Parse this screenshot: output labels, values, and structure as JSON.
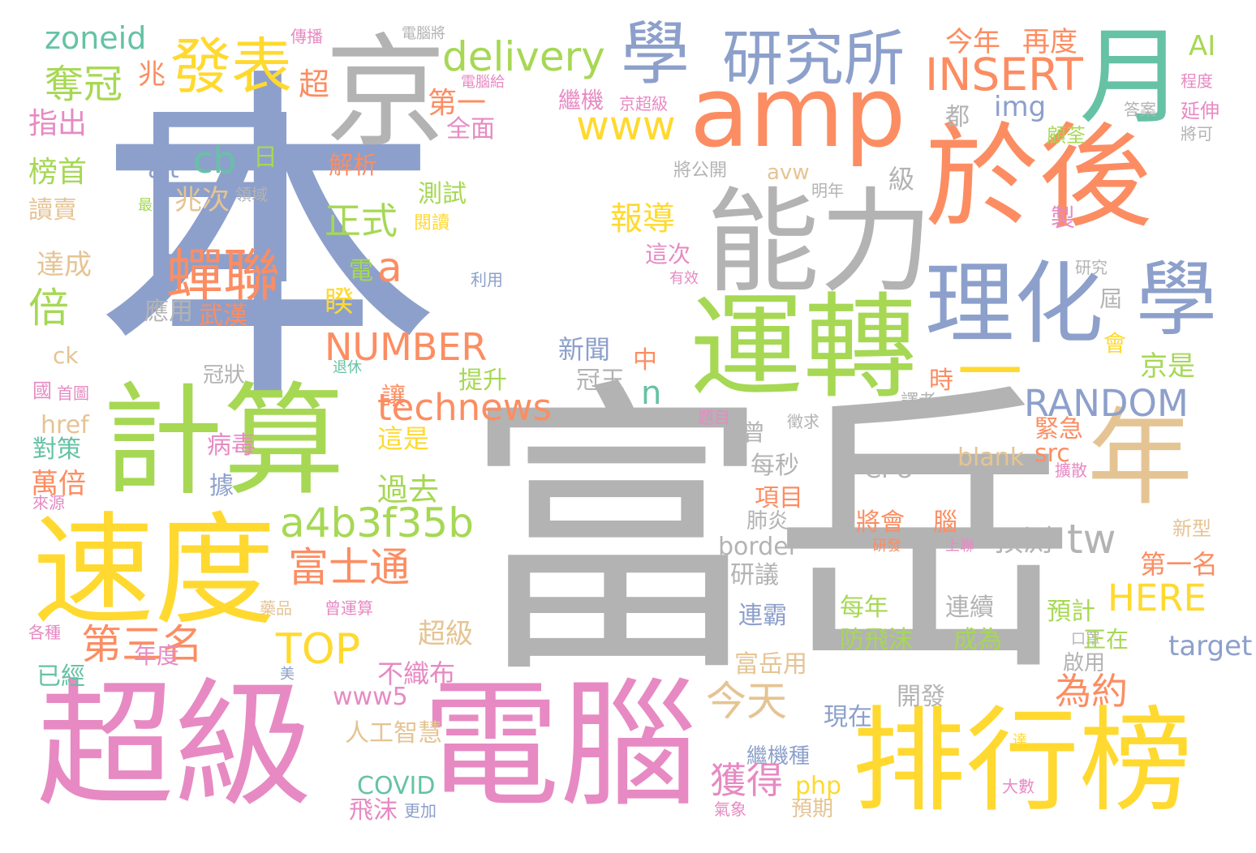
{
  "palette": {
    "blue": "#8da0cb",
    "gray": "#b3b3b3",
    "orange": "#fc8d62",
    "green": "#a6d854",
    "pink": "#e78ac3",
    "yellow": "#ffd92f",
    "tan": "#e5c494",
    "teal": "#66c2a5"
  },
  "words": [
    {
      "text": "本",
      "color": "#8da0cb"
    },
    {
      "text": "日",
      "color": "#8da0cb"
    },
    {
      "text": "富岳",
      "color": "#b3b3b3"
    },
    {
      "text": "電腦",
      "color": "#e78ac3"
    },
    {
      "text": "超級",
      "color": "#e78ac3"
    },
    {
      "text": "排行榜",
      "color": "#ffd92f"
    },
    {
      "text": "速度",
      "color": "#ffd92f"
    },
    {
      "text": "計算",
      "color": "#a6d854"
    },
    {
      "text": "運轉",
      "color": "#a6d854"
    },
    {
      "text": "能力",
      "color": "#b3b3b3"
    },
    {
      "text": "於後",
      "color": "#fc8d62"
    },
    {
      "text": "amp",
      "color": "#fc8d62"
    },
    {
      "text": "京",
      "color": "#b3b3b3"
    },
    {
      "text": "月",
      "color": "#66c2a5"
    },
    {
      "text": "年",
      "color": "#e5c494"
    },
    {
      "text": "一",
      "color": "#ffd92f"
    },
    {
      "text": "理化",
      "color": "#8da0cb"
    },
    {
      "text": "學",
      "color": "#8da0cb"
    },
    {
      "text": "學",
      "color": "#8da0cb"
    },
    {
      "text": "研究所",
      "color": "#8da0cb"
    },
    {
      "text": "發表",
      "color": "#ffd92f"
    },
    {
      "text": "delivery",
      "color": "#a6d854"
    },
    {
      "text": "INSERT",
      "color": "#fc8d62"
    },
    {
      "text": "zoneid",
      "color": "#66c2a5"
    },
    {
      "text": "傳播",
      "color": "#e78ac3"
    },
    {
      "text": "電腦將",
      "color": "#b3b3b3"
    },
    {
      "text": "今年",
      "color": "#fc8d62"
    },
    {
      "text": "再度",
      "color": "#fc8d62"
    },
    {
      "text": "AI",
      "color": "#a6d854"
    },
    {
      "text": "程度",
      "color": "#e78ac3"
    },
    {
      "text": "奪冠",
      "color": "#a6d854"
    },
    {
      "text": "兆",
      "color": "#fc8d62"
    },
    {
      "text": "超",
      "color": "#fc8d62"
    },
    {
      "text": "電腦給",
      "color": "#e78ac3"
    },
    {
      "text": "繼機",
      "color": "#e78ac3"
    },
    {
      "text": "京超級",
      "color": "#e78ac3"
    },
    {
      "text": "第一",
      "color": "#fc8d62"
    },
    {
      "text": "全面",
      "color": "#e78ac3"
    },
    {
      "text": "www",
      "color": "#ffd92f"
    },
    {
      "text": "img",
      "color": "#8da0cb"
    },
    {
      "text": "都",
      "color": "#b3b3b3"
    },
    {
      "text": "答案",
      "color": "#b3b3b3"
    },
    {
      "text": "延伸",
      "color": "#e78ac3"
    },
    {
      "text": "指出",
      "color": "#e78ac3"
    },
    {
      "text": "顧荃",
      "color": "#a6d854"
    },
    {
      "text": "將可",
      "color": "#b3b3b3"
    },
    {
      "text": "alt",
      "color": "#8da0cb"
    },
    {
      "text": "cb",
      "color": "#66c2a5"
    },
    {
      "text": "日",
      "color": "#a6d854"
    },
    {
      "text": "榜首",
      "color": "#a6d854"
    },
    {
      "text": "解析",
      "color": "#fc8d62"
    },
    {
      "text": "avw",
      "color": "#e5c494"
    },
    {
      "text": "將公開",
      "color": "#b3b3b3"
    },
    {
      "text": "級",
      "color": "#b3b3b3"
    },
    {
      "text": "讀賣",
      "color": "#e5c494"
    },
    {
      "text": "兆次",
      "color": "#e5c494"
    },
    {
      "text": "領域",
      "color": "#b3b3b3"
    },
    {
      "text": "最",
      "color": "#a6d854"
    },
    {
      "text": "測試",
      "color": "#a6d854"
    },
    {
      "text": "閱讀",
      "color": "#ffd92f"
    },
    {
      "text": "正式",
      "color": "#a6d854"
    },
    {
      "text": "報導",
      "color": "#ffd92f"
    },
    {
      "text": "明年",
      "color": "#b3b3b3"
    },
    {
      "text": "製",
      "color": "#e78ac3"
    },
    {
      "text": "蟬聯",
      "color": "#fc8d62"
    },
    {
      "text": "a",
      "color": "#fc8d62"
    },
    {
      "text": "倍",
      "color": "#a6d854"
    },
    {
      "text": "達成",
      "color": "#e5c494"
    },
    {
      "text": "電",
      "color": "#a6d854"
    },
    {
      "text": "這次",
      "color": "#e78ac3"
    },
    {
      "text": "利用",
      "color": "#8da0cb"
    },
    {
      "text": "有效",
      "color": "#e78ac3"
    },
    {
      "text": "研究",
      "color": "#b3b3b3"
    },
    {
      "text": "應用",
      "color": "#b3b3b3"
    },
    {
      "text": "武漢",
      "color": "#fc8d62"
    },
    {
      "text": "睽",
      "color": "#ffd92f"
    },
    {
      "text": "屆",
      "color": "#b3b3b3"
    },
    {
      "text": "NUMBER",
      "color": "#fc8d62"
    },
    {
      "text": "會",
      "color": "#ffd92f"
    },
    {
      "text": "新聞",
      "color": "#8da0cb"
    },
    {
      "text": "中",
      "color": "#fc8d62"
    },
    {
      "text": "ck",
      "color": "#e5c494"
    },
    {
      "text": "京是",
      "color": "#a6d854"
    },
    {
      "text": "國",
      "color": "#e78ac3"
    },
    {
      "text": "首圖",
      "color": "#e78ac3"
    },
    {
      "text": "冠狀",
      "color": "#b3b3b3"
    },
    {
      "text": "退休",
      "color": "#66c2a5"
    },
    {
      "text": "提升",
      "color": "#a6d854"
    },
    {
      "text": "冠王",
      "color": "#b3b3b3"
    },
    {
      "text": "n",
      "color": "#66c2a5"
    },
    {
      "text": "時",
      "color": "#fc8d62"
    },
    {
      "text": "讓",
      "color": "#fc8d62"
    },
    {
      "text": "technews",
      "color": "#fc8d62"
    },
    {
      "text": "RANDOM",
      "color": "#8da0cb"
    },
    {
      "text": "href",
      "color": "#e5c494"
    },
    {
      "text": "題目",
      "color": "#e78ac3"
    },
    {
      "text": "徵求",
      "color": "#b3b3b3"
    },
    {
      "text": "譯者",
      "color": "#b3b3b3"
    },
    {
      "text": "對策",
      "color": "#66c2a5"
    },
    {
      "text": "病毒",
      "color": "#e78ac3"
    },
    {
      "text": "這是",
      "color": "#ffd92f"
    },
    {
      "text": "曾",
      "color": "#b3b3b3"
    },
    {
      "text": "緊急",
      "color": "#fc8d62"
    },
    {
      "text": "src",
      "color": "#fc8d62"
    },
    {
      "text": "每秒",
      "color": "#b3b3b3"
    },
    {
      "text": "blank",
      "color": "#e5c494"
    },
    {
      "text": "萬倍",
      "color": "#fc8d62"
    },
    {
      "text": "據",
      "color": "#8da0cb"
    },
    {
      "text": "過去",
      "color": "#a6d854"
    },
    {
      "text": "CPU",
      "color": "#b3b3b3"
    },
    {
      "text": "擴散",
      "color": "#e78ac3"
    },
    {
      "text": "來源",
      "color": "#e78ac3"
    },
    {
      "text": "項目",
      "color": "#fc8d62"
    },
    {
      "text": "a4b3f35b",
      "color": "#a6d854"
    },
    {
      "text": "肺炎",
      "color": "#b3b3b3"
    },
    {
      "text": "將會",
      "color": "#fc8d62"
    },
    {
      "text": "腦",
      "color": "#fc8d62"
    },
    {
      "text": "tw",
      "color": "#b3b3b3"
    },
    {
      "text": "新型",
      "color": "#e5c494"
    },
    {
      "text": "預測",
      "color": "#b3b3b3"
    },
    {
      "text": "border",
      "color": "#b3b3b3"
    },
    {
      "text": "研發",
      "color": "#fc8d62"
    },
    {
      "text": "上聯",
      "color": "#e78ac3"
    },
    {
      "text": "第一名",
      "color": "#fc8d62"
    },
    {
      "text": "富士通",
      "color": "#fc8d62"
    },
    {
      "text": "研議",
      "color": "#b3b3b3"
    },
    {
      "text": "HERE",
      "color": "#ffd92f"
    },
    {
      "text": "藥品",
      "color": "#e5c494"
    },
    {
      "text": "曾運算",
      "color": "#e78ac3"
    },
    {
      "text": "每年",
      "color": "#a6d854"
    },
    {
      "text": "連續",
      "color": "#b3b3b3"
    },
    {
      "text": "預計",
      "color": "#a6d854"
    },
    {
      "text": "連霸",
      "color": "#8da0cb"
    },
    {
      "text": "各種",
      "color": "#e78ac3"
    },
    {
      "text": "口罩",
      "color": "#b3b3b3"
    },
    {
      "text": "第三名",
      "color": "#fc8d62"
    },
    {
      "text": "年度",
      "color": "#e78ac3"
    },
    {
      "text": "TOP",
      "color": "#ffd92f"
    },
    {
      "text": "超級",
      "color": "#e5c494"
    },
    {
      "text": "防飛沫",
      "color": "#a6d854"
    },
    {
      "text": "成為",
      "color": "#a6d854"
    },
    {
      "text": "正在",
      "color": "#a6d854"
    },
    {
      "text": "target",
      "color": "#8da0cb"
    },
    {
      "text": "啟用",
      "color": "#b3b3b3"
    },
    {
      "text": "已經",
      "color": "#66c2a5"
    },
    {
      "text": "美",
      "color": "#8da0cb"
    },
    {
      "text": "不織布",
      "color": "#e78ac3"
    },
    {
      "text": "富岳用",
      "color": "#e5c494"
    },
    {
      "text": "為約",
      "color": "#fc8d62"
    },
    {
      "text": "www5",
      "color": "#e78ac3"
    },
    {
      "text": "今天",
      "color": "#e5c494"
    },
    {
      "text": "開發",
      "color": "#b3b3b3"
    },
    {
      "text": "人工智慧",
      "color": "#e5c494"
    },
    {
      "text": "現在",
      "color": "#8da0cb"
    },
    {
      "text": "達",
      "color": "#ffd92f"
    },
    {
      "text": "繼機種",
      "color": "#8da0cb"
    },
    {
      "text": "COVID",
      "color": "#66c2a5"
    },
    {
      "text": "獲得",
      "color": "#e78ac3"
    },
    {
      "text": "php",
      "color": "#ffd92f"
    },
    {
      "text": "大數",
      "color": "#e78ac3"
    },
    {
      "text": "飛沫",
      "color": "#e78ac3"
    },
    {
      "text": "更加",
      "color": "#8da0cb"
    },
    {
      "text": "氣象",
      "color": "#e78ac3"
    },
    {
      "text": "預期",
      "color": "#e5c494"
    },
    {
      "text": "目前",
      "color": "#b3b3b3"
    }
  ]
}
